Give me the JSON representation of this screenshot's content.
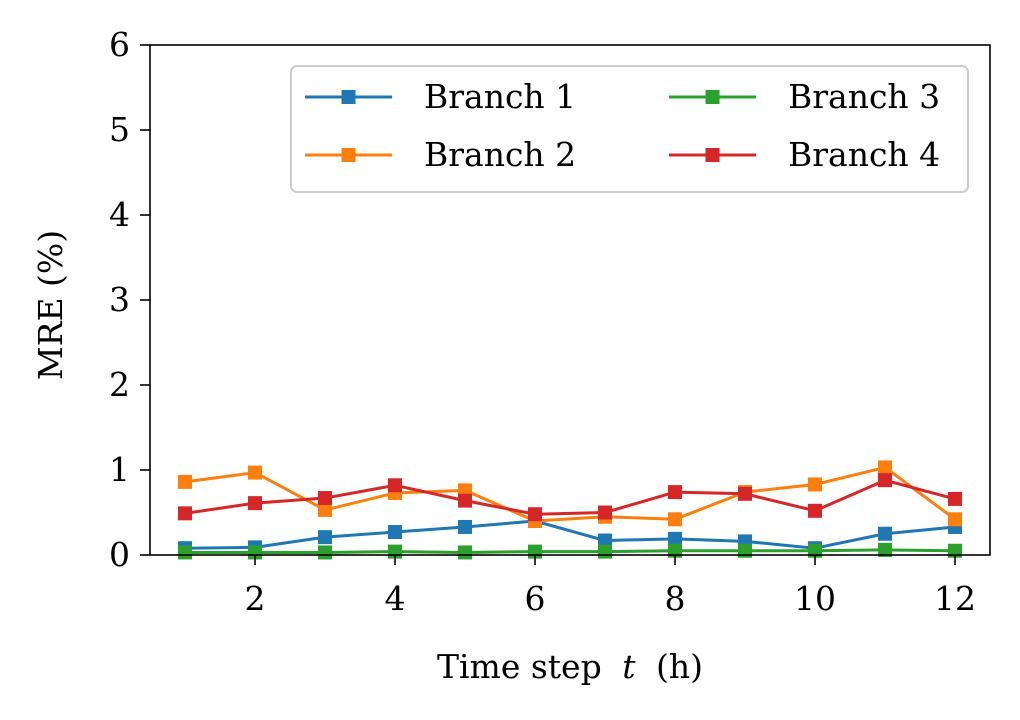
{
  "chart_data": {
    "type": "line",
    "title": "",
    "xlabel": "Time step",
    "xlabel_var": "t",
    "xlabel_unit": "(h)",
    "ylabel": "MRE (%)",
    "xlim": [
      0.5,
      12.5
    ],
    "ylim": [
      0,
      6
    ],
    "xticks": [
      2,
      4,
      6,
      8,
      10,
      12
    ],
    "yticks": [
      0,
      1,
      2,
      3,
      4,
      5,
      6
    ],
    "grid": false,
    "legend_position": "top-right",
    "legend_columns": 2,
    "x": [
      1,
      2,
      3,
      4,
      5,
      6,
      7,
      8,
      9,
      10,
      11,
      12
    ],
    "series": [
      {
        "name": "Branch 1",
        "color": "#1f77b4",
        "values": [
          0.08,
          0.09,
          0.21,
          0.27,
          0.33,
          0.4,
          0.17,
          0.19,
          0.16,
          0.08,
          0.25,
          0.33
        ]
      },
      {
        "name": "Branch 2",
        "color": "#ff7f0e",
        "values": [
          0.86,
          0.97,
          0.53,
          0.73,
          0.76,
          0.4,
          0.45,
          0.42,
          0.74,
          0.83,
          1.03,
          0.42
        ]
      },
      {
        "name": "Branch 3",
        "color": "#2ca02c",
        "values": [
          0.03,
          0.03,
          0.03,
          0.04,
          0.03,
          0.04,
          0.04,
          0.05,
          0.05,
          0.05,
          0.06,
          0.05
        ]
      },
      {
        "name": "Branch 4",
        "color": "#d62728",
        "values": [
          0.49,
          0.61,
          0.67,
          0.82,
          0.64,
          0.48,
          0.5,
          0.74,
          0.72,
          0.52,
          0.88,
          0.66
        ]
      }
    ]
  }
}
